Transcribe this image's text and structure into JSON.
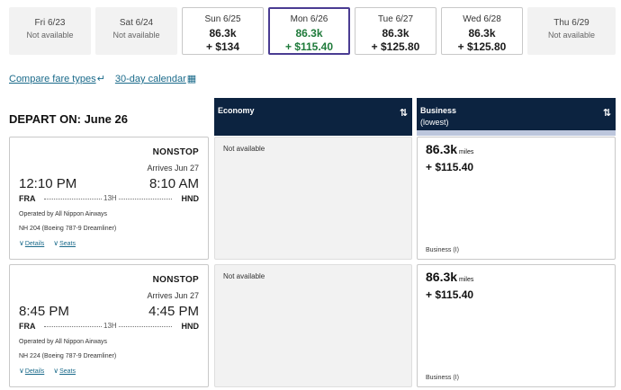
{
  "dates": [
    {
      "label": "Fri 6/23",
      "status": "Not available"
    },
    {
      "label": "Sat 6/24",
      "status": "Not available"
    },
    {
      "label": "Sun 6/25",
      "miles": "86.3k",
      "fee": "+ $134"
    },
    {
      "label": "Mon 6/26",
      "miles": "86.3k",
      "fee": "+ $115.40",
      "selected": true
    },
    {
      "label": "Tue 6/27",
      "miles": "86.3k",
      "fee": "+ $125.80"
    },
    {
      "label": "Wed 6/28",
      "miles": "86.3k",
      "fee": "+ $125.80"
    },
    {
      "label": "Thu 6/29",
      "status": "Not available"
    }
  ],
  "links": {
    "compare": "Compare fare types",
    "calendar": "30-day calendar"
  },
  "depart": {
    "prefix": "DEPART ON:",
    "date": "June 26"
  },
  "columns": {
    "economy": {
      "title": "Economy"
    },
    "business": {
      "title": "Business",
      "sub": "(lowest)"
    }
  },
  "colors": {
    "header": "#0c2340",
    "selected_border": "#4a3c92",
    "selected_text": "#1e7a3a",
    "link": "#1a6a8a"
  },
  "flights": [
    {
      "type": "NONSTOP",
      "arrives": "Arrives Jun 27",
      "dep_time": "12:10 PM",
      "arr_time": "8:10 AM",
      "from": "FRA",
      "to": "HND",
      "duration": "13H",
      "operated": "Operated by All Nippon Airways",
      "aircraft": "NH 204 (Boeing 787-9 Dreamliner)",
      "details": "Details",
      "seats": "Seats",
      "economy": "Not available",
      "business": {
        "miles": "86.3k",
        "miles_unit": "miles",
        "fee": "+ $115.40",
        "cabin": "Business (I)"
      }
    },
    {
      "type": "NONSTOP",
      "arrives": "Arrives Jun 27",
      "dep_time": "8:45 PM",
      "arr_time": "4:45 PM",
      "from": "FRA",
      "to": "HND",
      "duration": "13H",
      "operated": "Operated by All Nippon Airways",
      "aircraft": "NH 224 (Boeing 787-9 Dreamliner)",
      "details": "Details",
      "seats": "Seats",
      "economy": "Not available",
      "business": {
        "miles": "86.3k",
        "miles_unit": "miles",
        "fee": "+ $115.40",
        "cabin": "Business (I)"
      }
    }
  ]
}
